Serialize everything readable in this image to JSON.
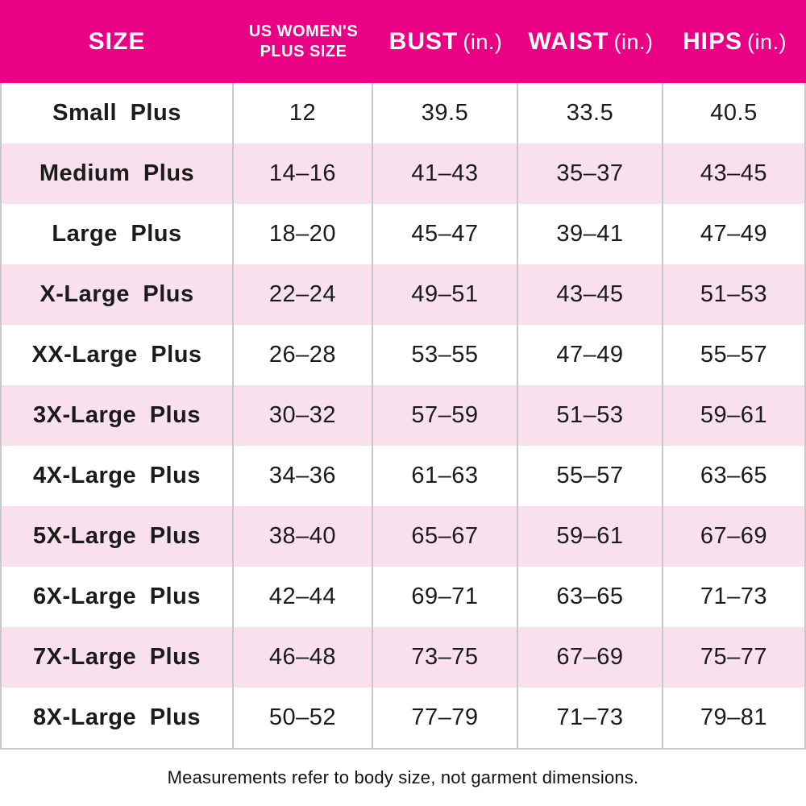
{
  "header": {
    "size_label": "SIZE",
    "plus_size_line1": "US WOMEN'S",
    "plus_size_line2": "PLUS SIZE",
    "bust_label": "BUST",
    "bust_unit": "(in.)",
    "waist_label": "WAIST",
    "waist_unit": "(in.)",
    "hips_label": "HIPS",
    "hips_unit": "(in.)"
  },
  "chart_data": {
    "type": "table",
    "columns": [
      "SIZE",
      "US WOMEN'S PLUS SIZE",
      "BUST (in.)",
      "WAIST (in.)",
      "HIPS (in.)"
    ],
    "rows": [
      [
        "Small Plus",
        "12",
        "39.5",
        "33.5",
        "40.5"
      ],
      [
        "Medium Plus",
        "14–16",
        "41–43",
        "35–37",
        "43–45"
      ],
      [
        "Large Plus",
        "18–20",
        "45–47",
        "39–41",
        "47–49"
      ],
      [
        "X-Large Plus",
        "22–24",
        "49–51",
        "43–45",
        "51–53"
      ],
      [
        "XX-Large Plus",
        "26–28",
        "53–55",
        "47–49",
        "55–57"
      ],
      [
        "3X-Large Plus",
        "30–32",
        "57–59",
        "51–53",
        "59–61"
      ],
      [
        "4X-Large Plus",
        "34–36",
        "61–63",
        "55–57",
        "63–65"
      ],
      [
        "5X-Large Plus",
        "38–40",
        "65–67",
        "59–61",
        "67–69"
      ],
      [
        "6X-Large Plus",
        "42–44",
        "69–71",
        "63–65",
        "71–73"
      ],
      [
        "7X-Large Plus",
        "46–48",
        "73–75",
        "67–69",
        "75–77"
      ],
      [
        "8X-Large Plus",
        "50–52",
        "77–79",
        "71–73",
        "79–81"
      ]
    ],
    "footnote": "Measurements refer to body size, not garment dimensions."
  },
  "footer": {
    "note": "Measurements refer to body size, not garment dimensions."
  },
  "colors": {
    "header_bg": "#E90084",
    "header_text": "#FFFFFF",
    "row_alt_bg": "#F8E1EC",
    "row_bg": "#FFFFFF",
    "divider": "#C8C8C8",
    "text": "#1B1B1B"
  }
}
